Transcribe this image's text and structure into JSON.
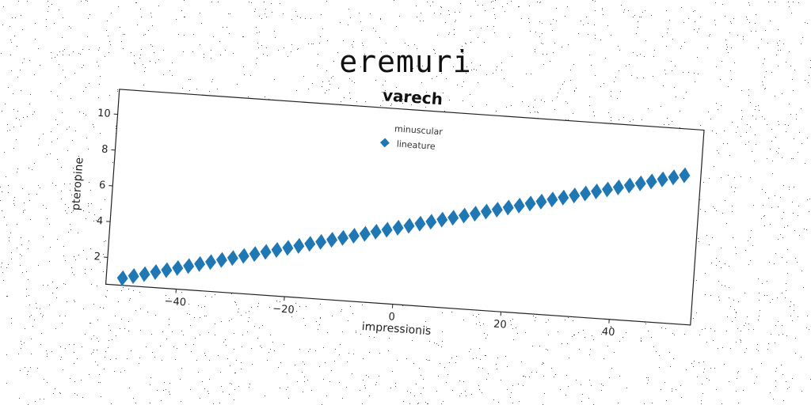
{
  "page": {
    "title": "eremuri"
  },
  "colors": {
    "marker": "#1f77b4",
    "frame": "#222222",
    "background": "#ffffff"
  },
  "chart_data": {
    "type": "scatter",
    "title": "varech",
    "xlabel": "impressionis",
    "ylabel": "pteropine",
    "xlim": [
      -53,
      55
    ],
    "ylim": [
      0.5,
      11.4
    ],
    "xticks": [
      -40,
      -20,
      0,
      20,
      40
    ],
    "xtick_labels": [
      "−40",
      "−20",
      "0",
      "20",
      "40"
    ],
    "yticks": [
      2,
      4,
      6,
      8,
      10
    ],
    "ytick_labels": [
      "2",
      "4",
      "6",
      "8",
      "10"
    ],
    "grid": false,
    "legend": {
      "title": "minuscular",
      "placement": "top-center"
    },
    "series": [
      {
        "name": "lineature",
        "marker": "diamond",
        "x": [
          -50,
          -48,
          -46,
          -44,
          -42,
          -40,
          -38,
          -36,
          -34,
          -32,
          -30,
          -28,
          -26,
          -24,
          -22,
          -20,
          -18,
          -16,
          -14,
          -12,
          -10,
          -8,
          -6,
          -4,
          -2,
          0,
          2,
          4,
          6,
          8,
          10,
          12,
          14,
          16,
          18,
          20,
          22,
          24,
          26,
          28,
          30,
          32,
          34,
          36,
          38,
          40,
          42,
          44,
          46,
          48,
          50,
          52
        ],
        "y": [
          0.9,
          1.06,
          1.21,
          1.37,
          1.52,
          1.68,
          1.83,
          1.99,
          2.14,
          2.3,
          2.45,
          2.61,
          2.76,
          2.92,
          3.07,
          3.23,
          3.38,
          3.54,
          3.69,
          3.85,
          4.0,
          4.16,
          4.31,
          4.47,
          4.62,
          4.78,
          4.93,
          5.09,
          5.24,
          5.4,
          5.55,
          5.71,
          5.86,
          6.02,
          6.17,
          6.33,
          6.48,
          6.64,
          6.79,
          6.95,
          7.1,
          7.26,
          7.41,
          7.57,
          7.72,
          7.88,
          8.03,
          8.19,
          8.34,
          8.5,
          8.65,
          8.81
        ]
      }
    ]
  }
}
